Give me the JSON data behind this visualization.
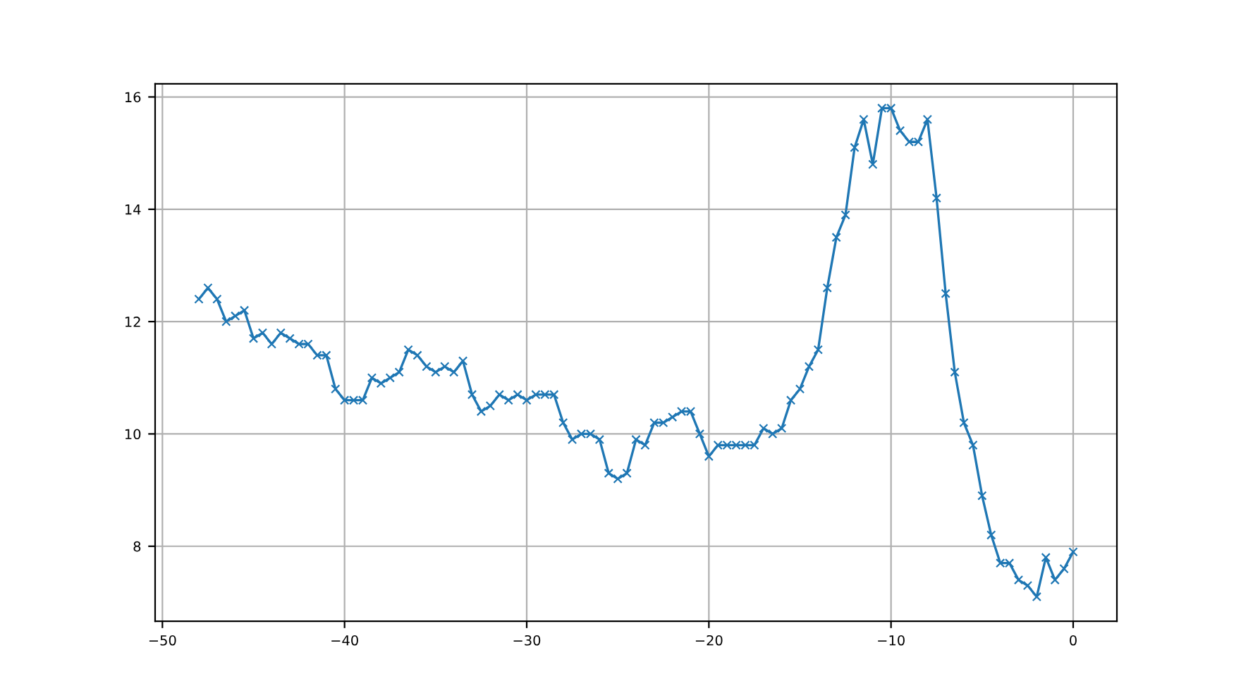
{
  "chart_data": {
    "type": "line",
    "x": [
      -48,
      -47.5,
      -47,
      -46.5,
      -46,
      -45.5,
      -45,
      -44.5,
      -44,
      -43.5,
      -43,
      -42.5,
      -42,
      -41.5,
      -41,
      -40.5,
      -40,
      -39.5,
      -39,
      -38.5,
      -38,
      -37.5,
      -37,
      -36.5,
      -36,
      -35.5,
      -35,
      -34.5,
      -34,
      -33.5,
      -33,
      -32.5,
      -32,
      -31.5,
      -31,
      -30.5,
      -30,
      -29.5,
      -29,
      -28.5,
      -28,
      -27.5,
      -27,
      -26.5,
      -26,
      -25.5,
      -25,
      -24.5,
      -24,
      -23.5,
      -23,
      -22.5,
      -22,
      -21.5,
      -21,
      -20.5,
      -20,
      -19.5,
      -19,
      -18.5,
      -18,
      -17.5,
      -17,
      -16.5,
      -16,
      -15.5,
      -15,
      -14.5,
      -14,
      -13.5,
      -13,
      -12.5,
      -12,
      -11.5,
      -11,
      -10.5,
      -10,
      -9.5,
      -9,
      -8.5,
      -8,
      -7.5,
      -7,
      -6.5,
      -6,
      -5.5,
      -5,
      -4.5,
      -4,
      -3.5,
      -3,
      -2.5,
      -2,
      -1.5,
      -1,
      -0.5,
      0
    ],
    "series": [
      {
        "color": "#1f77b4",
        "values": [
          12.4,
          12.6,
          12.4,
          12.0,
          12.1,
          12.2,
          11.7,
          11.8,
          11.6,
          11.8,
          11.7,
          11.6,
          11.6,
          11.4,
          11.4,
          10.8,
          10.6,
          10.6,
          10.6,
          11.0,
          10.9,
          11.0,
          11.1,
          11.5,
          11.4,
          11.2,
          11.1,
          11.2,
          11.1,
          11.3,
          10.7,
          10.4,
          10.5,
          10.7,
          10.6,
          10.7,
          10.6,
          10.7,
          10.7,
          10.7,
          10.2,
          9.9,
          10.0,
          10.0,
          9.9,
          9.3,
          9.2,
          9.3,
          9.9,
          9.8,
          10.2,
          10.2,
          10.3,
          10.4,
          10.4,
          10.0,
          9.6,
          9.8,
          9.8,
          9.8,
          9.8,
          9.8,
          10.1,
          10.0,
          10.1,
          10.6,
          10.8,
          11.2,
          11.5,
          12.6,
          13.5,
          13.9,
          15.1,
          15.6,
          14.8,
          15.8,
          15.8,
          15.4,
          15.2,
          15.2,
          15.6,
          14.2,
          12.5,
          11.1,
          10.2,
          9.8,
          8.9,
          8.2,
          7.7,
          7.7,
          7.4,
          7.3,
          7.1,
          7.8,
          7.4,
          7.6,
          7.9
        ]
      }
    ],
    "xlim": [
      -50.4,
      2.4
    ],
    "ylim": [
      6.665,
      16.235
    ],
    "xticks": [
      {
        "value": -50,
        "label": "−50"
      },
      {
        "value": -40,
        "label": "−40"
      },
      {
        "value": -30,
        "label": "−30"
      },
      {
        "value": -20,
        "label": "−20"
      },
      {
        "value": -10,
        "label": "−10"
      },
      0
    ],
    "yticks": [
      8,
      10,
      12,
      14,
      16
    ],
    "grid": true,
    "marker": "cross",
    "line_style": "solid"
  }
}
